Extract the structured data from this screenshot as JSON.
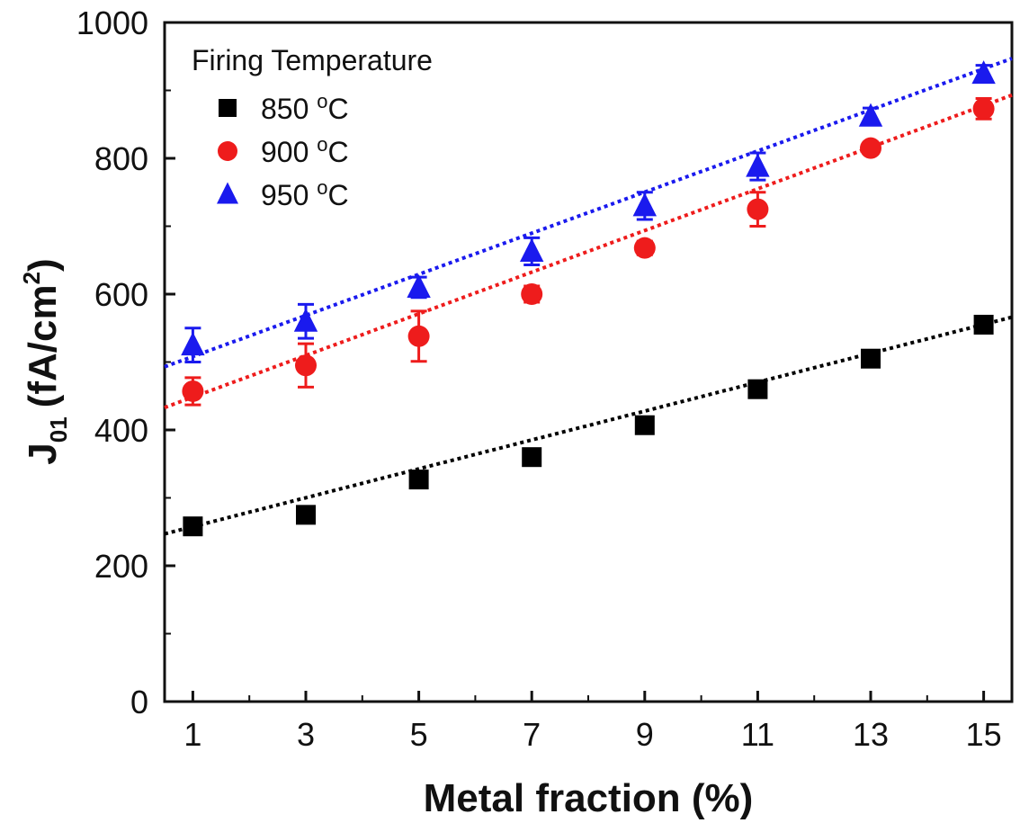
{
  "chart_data": {
    "type": "scatter",
    "title": "",
    "xlabel": "Metal fraction (%)",
    "ylabel": {
      "main": "J",
      "sub": "01",
      "unit_open": "(fA/cm",
      "unit_sup": "2",
      "unit_close": ")"
    },
    "xlim": [
      0.5,
      15.5
    ],
    "ylim": [
      0,
      1000
    ],
    "x_ticks": [
      "1",
      "3",
      "5",
      "7",
      "9",
      "11",
      "13",
      "15"
    ],
    "y_ticks": [
      "0",
      "200",
      "400",
      "600",
      "800",
      "1000"
    ],
    "legend": {
      "title": "Firing Temperature",
      "placement": "top-left"
    },
    "x": [
      1,
      3,
      5,
      7,
      9,
      11,
      13,
      15
    ],
    "series": [
      {
        "name": "850",
        "unit": "oC",
        "marker": "square",
        "color": "#000000",
        "values": [
          258,
          275,
          327,
          360,
          407,
          460,
          505,
          555
        ],
        "errors": [
          8,
          12,
          8,
          8,
          8,
          8,
          8,
          8
        ],
        "fit": {
          "x": [
            0.5,
            15.5
          ],
          "y": [
            247,
            566
          ]
        }
      },
      {
        "name": "900",
        "unit": "oC",
        "marker": "circle",
        "color": "#ee1c1c",
        "values": [
          457,
          495,
          538,
          600,
          668,
          725,
          815,
          873
        ],
        "errors": [
          20,
          32,
          37,
          12,
          10,
          25,
          8,
          15
        ],
        "fit": {
          "x": [
            0.5,
            15.5
          ],
          "y": [
            433,
            893
          ]
        }
      },
      {
        "name": "950",
        "unit": "oC",
        "marker": "triangle",
        "color": "#1a1aee",
        "values": [
          525,
          560,
          610,
          663,
          730,
          788,
          862,
          925
        ],
        "errors": [
          25,
          25,
          15,
          20,
          20,
          20,
          12,
          12
        ],
        "fit": {
          "x": [
            0.5,
            15.5
          ],
          "y": [
            493,
            947
          ]
        }
      }
    ]
  }
}
